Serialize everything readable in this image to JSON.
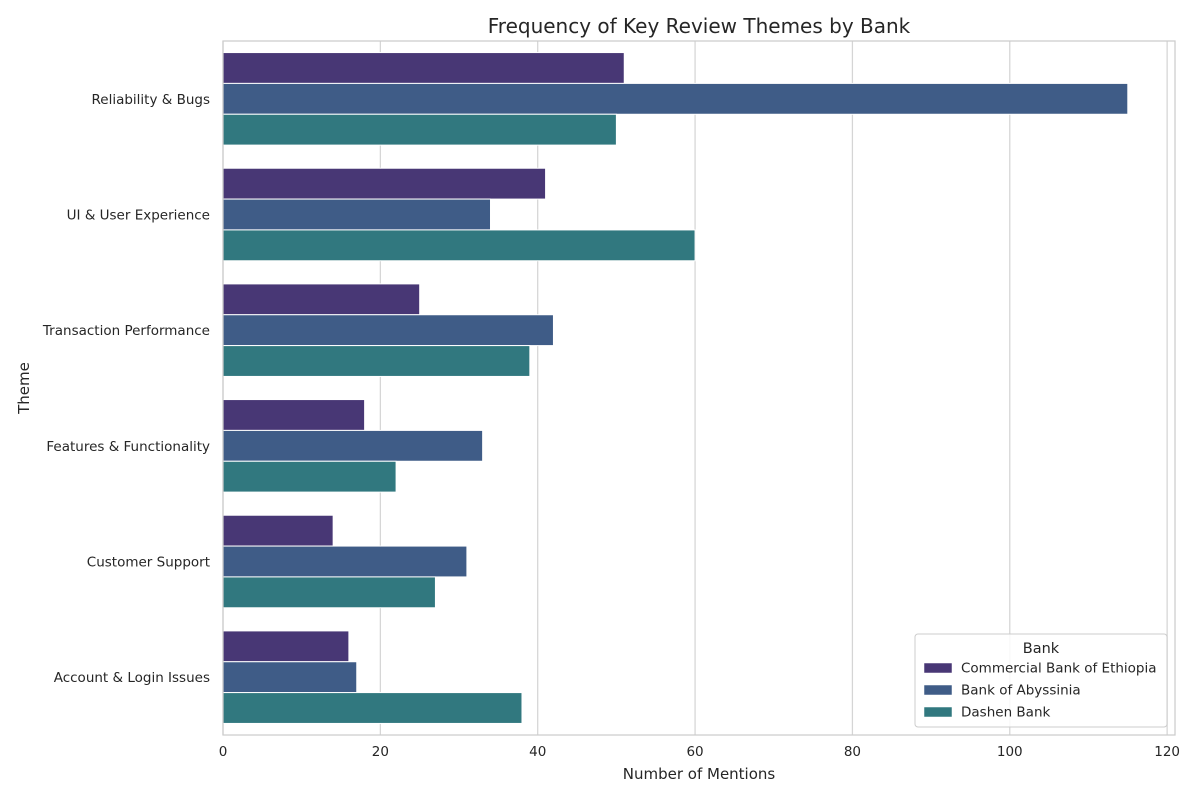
{
  "chart_data": {
    "type": "bar",
    "orientation": "horizontal",
    "title": "Frequency of Key Review Themes by Bank",
    "xlabel": "Number of Mentions",
    "ylabel": "Theme",
    "xlim": [
      0,
      121
    ],
    "xticks": [
      0,
      20,
      40,
      60,
      80,
      100,
      120
    ],
    "grid": true,
    "legend": {
      "title": "Bank",
      "placement": "bottom-right"
    },
    "categories": [
      "Reliability & Bugs",
      "UI & User Experience",
      "Transaction Performance",
      "Features & Functionality",
      "Customer Support",
      "Account & Login Issues"
    ],
    "series": [
      {
        "name": "Commercial Bank of Ethiopia",
        "color": "#483775",
        "values": [
          51,
          41,
          25,
          18,
          14,
          16
        ]
      },
      {
        "name": "Bank of Abyssinia",
        "color": "#3f5c87",
        "values": [
          115,
          34,
          42,
          33,
          31,
          17
        ]
      },
      {
        "name": "Dashen Bank",
        "color": "#31787f",
        "values": [
          50,
          60,
          39,
          22,
          27,
          38
        ]
      }
    ]
  }
}
